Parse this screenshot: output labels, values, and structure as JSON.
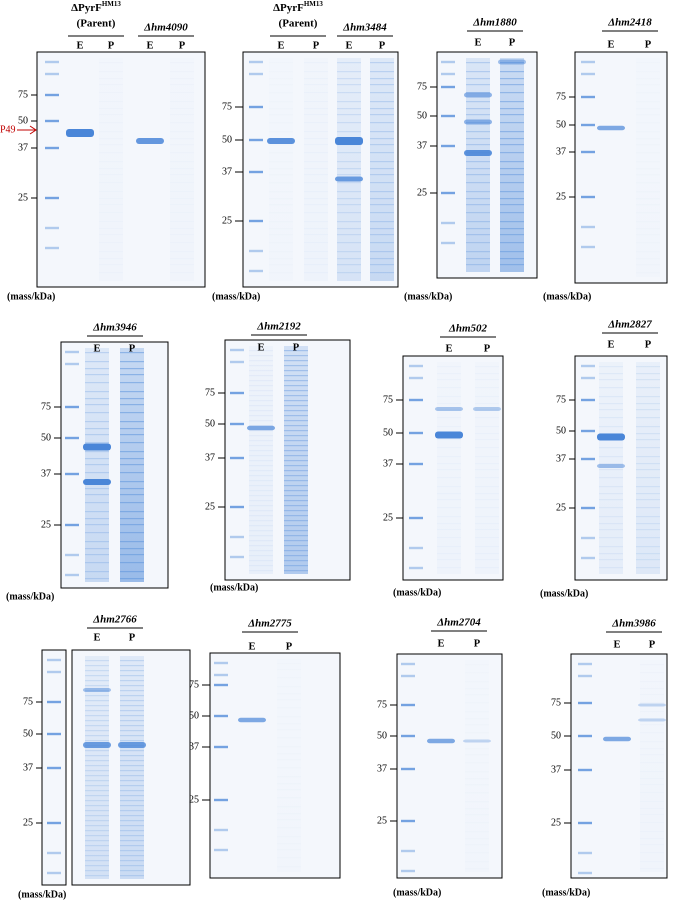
{
  "panels": [
    {
      "titles": [
        {
          "text": "ΔPyrF",
          "sup": "HM13",
          "line2": "(Parent)"
        },
        {
          "text": "Δhm4090"
        }
      ],
      "lanes": [
        "E",
        "P",
        "E",
        "P"
      ],
      "markers": [
        "75",
        "50",
        "37",
        "25"
      ],
      "arrow": "P49",
      "unit": "(mass/kDa)"
    },
    {
      "titles": [
        {
          "text": "ΔPyrF",
          "sup": "HM13",
          "line2": "(Parent)"
        },
        {
          "text": "Δhm3484"
        }
      ],
      "lanes": [
        "E",
        "P",
        "E",
        "P"
      ],
      "markers": [
        "75",
        "50",
        "37",
        "25"
      ],
      "unit": "(mass/kDa)"
    },
    {
      "titles": [
        {
          "text": "Δhm1880"
        }
      ],
      "lanes": [
        "E",
        "P"
      ],
      "markers": [
        "75",
        "50",
        "37",
        "25"
      ],
      "unit": "(mass/kDa)"
    },
    {
      "titles": [
        {
          "text": "Δhm2418"
        }
      ],
      "lanes": [
        "E",
        "P"
      ],
      "markers": [
        "75",
        "50",
        "37",
        "25"
      ],
      "unit": "(mass/kDa)"
    },
    {
      "titles": [
        {
          "text": "Δhm3946"
        }
      ],
      "lanes": [
        "E",
        "P"
      ],
      "markers": [
        "75",
        "50",
        "37",
        "25"
      ],
      "unit": "(mass/kDa)"
    },
    {
      "titles": [
        {
          "text": "Δhm2192"
        }
      ],
      "lanes": [
        "E",
        "P"
      ],
      "markers": [
        "75",
        "50",
        "37",
        "25"
      ],
      "unit": "(mass/kDa)"
    },
    {
      "titles": [
        {
          "text": "Δhm502"
        }
      ],
      "lanes": [
        "E",
        "P"
      ],
      "markers": [
        "75",
        "50",
        "37",
        "25"
      ],
      "unit": "(mass/kDa)"
    },
    {
      "titles": [
        {
          "text": "Δhm2827"
        }
      ],
      "lanes": [
        "E",
        "P"
      ],
      "markers": [
        "75",
        "50",
        "37",
        "25"
      ],
      "unit": "(mass/kDa)"
    },
    {
      "titles": [
        {
          "text": "Δhm2766"
        }
      ],
      "lanes": [
        "E",
        "P"
      ],
      "markers": [
        "75",
        "50",
        "37",
        "25"
      ],
      "unit": "(mass/kDa)"
    },
    {
      "titles": [
        {
          "text": "Δhm2775"
        }
      ],
      "lanes": [
        "E",
        "P"
      ],
      "markers": [
        "75",
        "50",
        "37",
        "25"
      ]
    },
    {
      "titles": [
        {
          "text": "Δhm2704"
        }
      ],
      "lanes": [
        "E",
        "P"
      ],
      "markers": [
        "75",
        "50",
        "37",
        "25"
      ],
      "unit": "(mass/kDa)"
    },
    {
      "titles": [
        {
          "text": "Δhm3986"
        }
      ],
      "lanes": [
        "E",
        "P"
      ],
      "markers": [
        "75",
        "50",
        "37",
        "25"
      ],
      "unit": "(mass/kDa)"
    }
  ]
}
